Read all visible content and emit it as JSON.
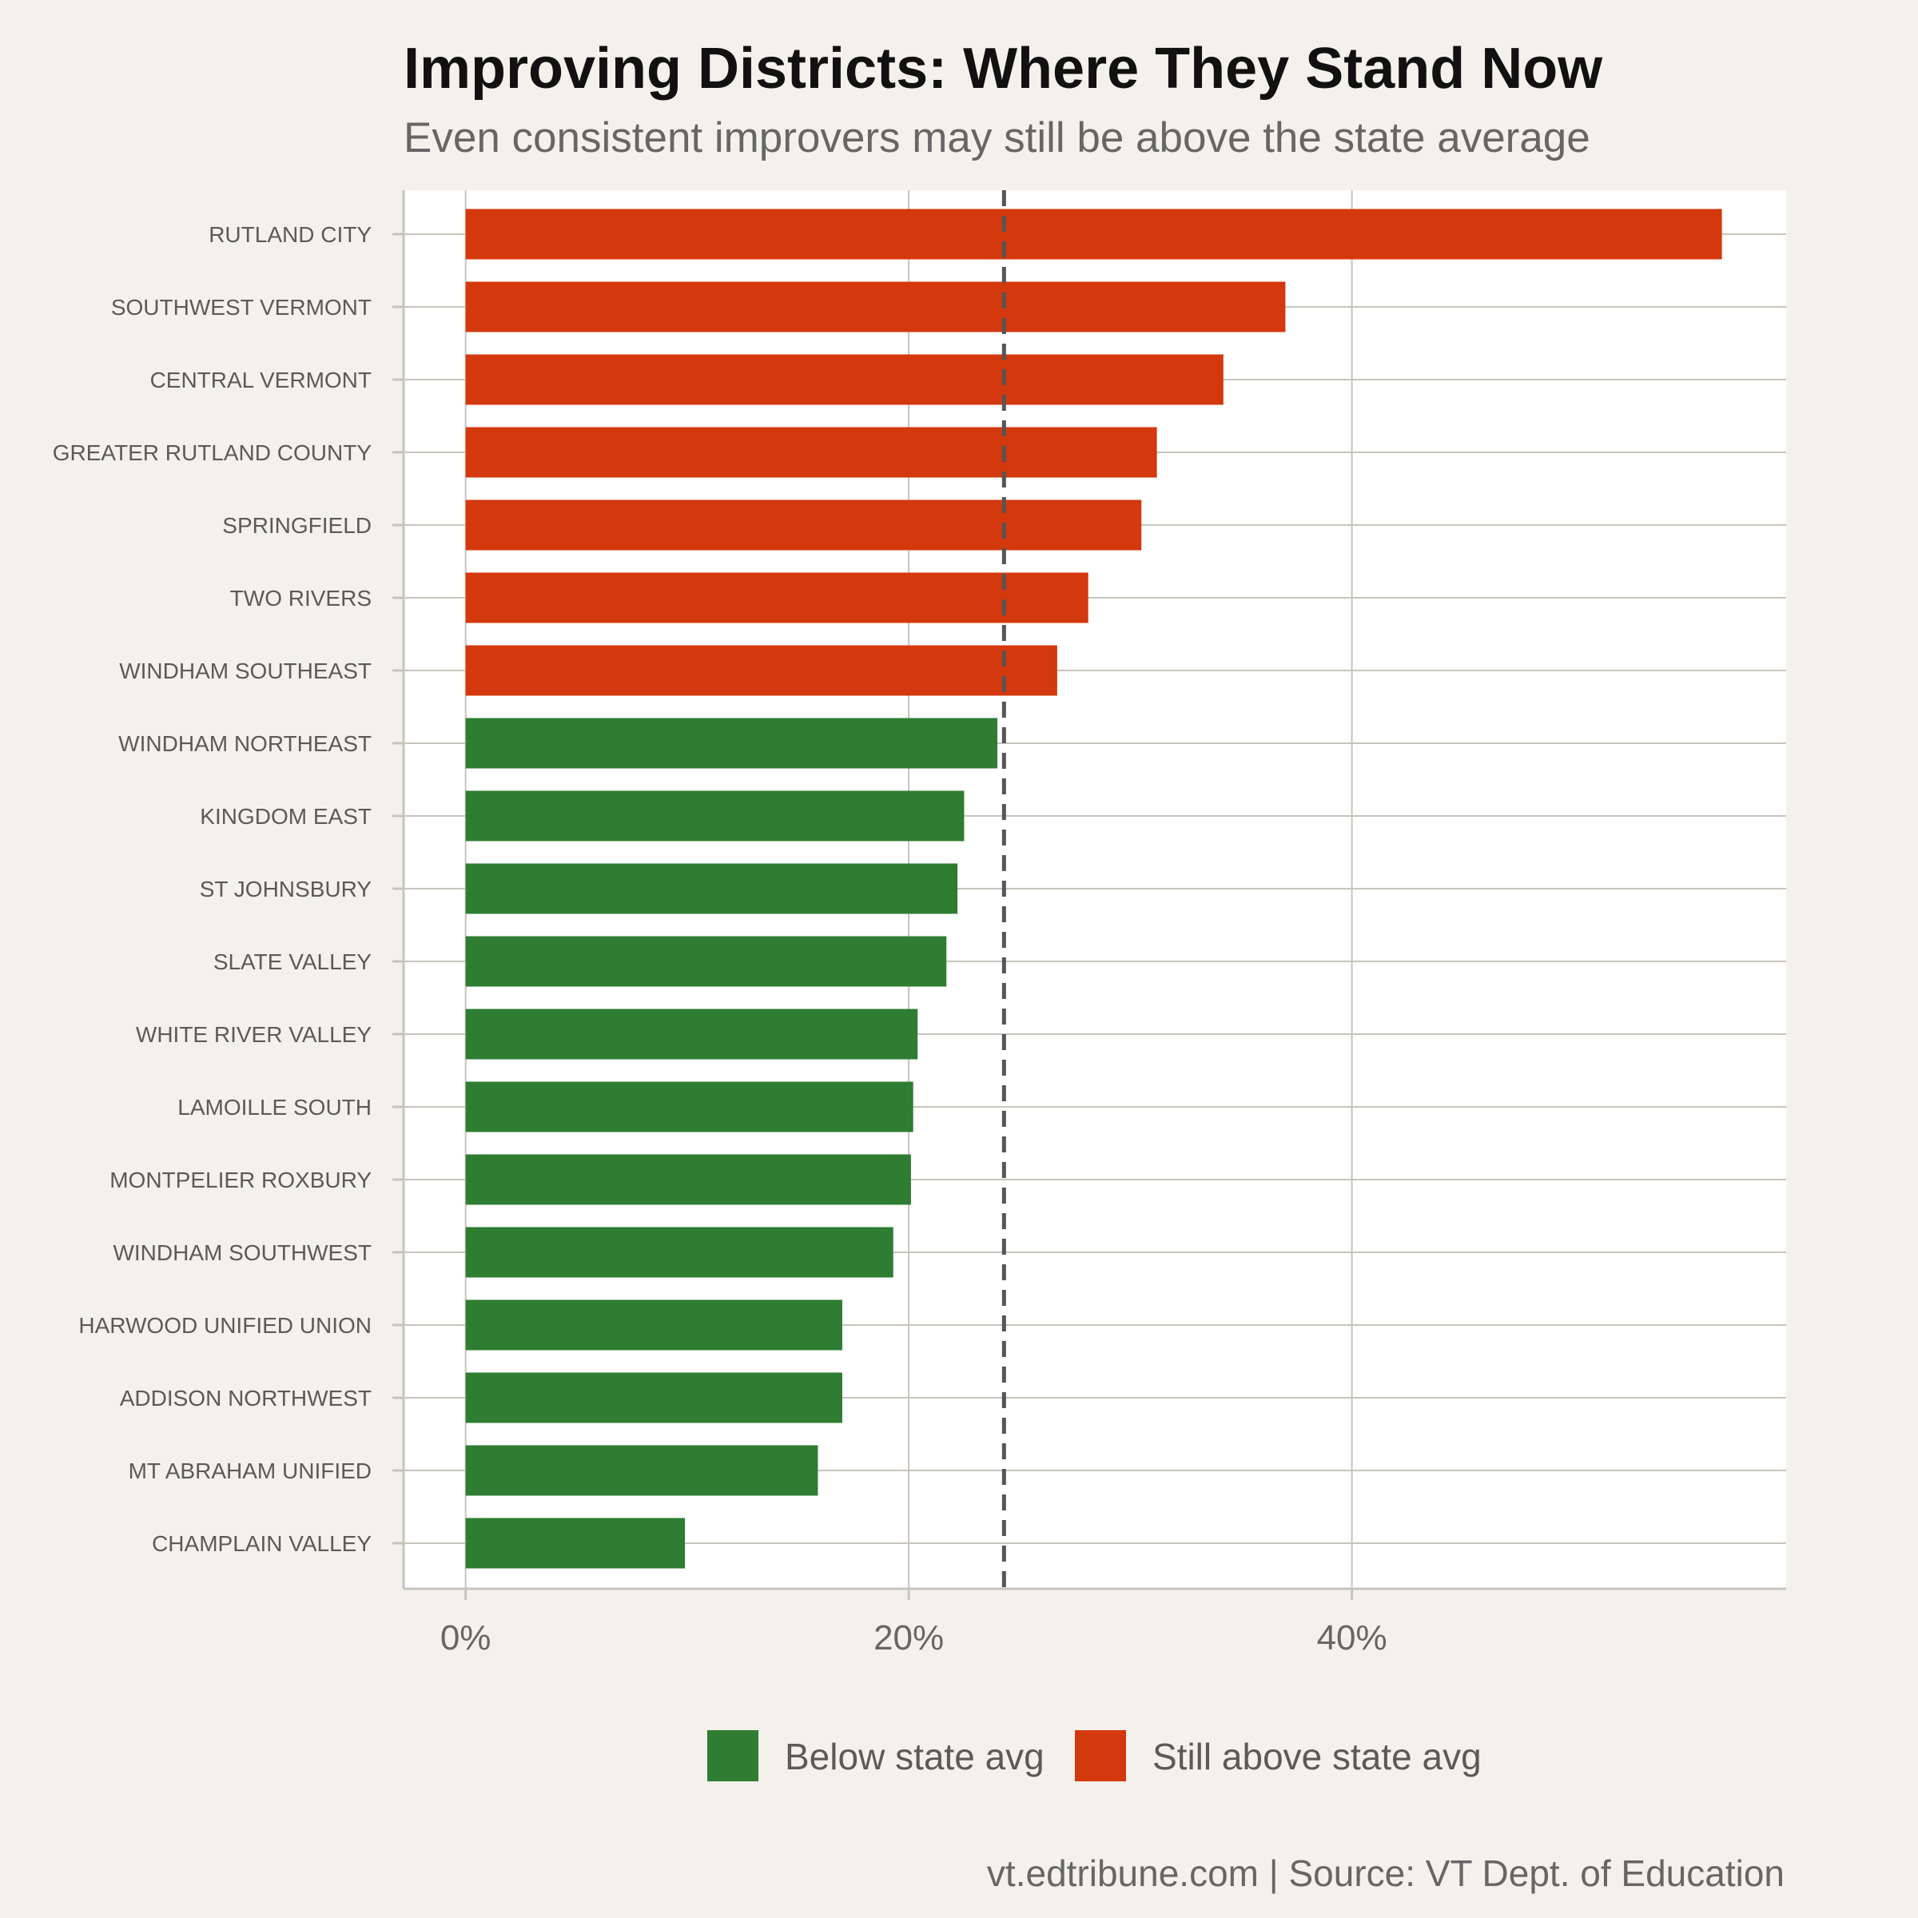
{
  "chart_data": {
    "type": "bar",
    "orientation": "horizontal",
    "title": "Improving Districts: Where They Stand Now",
    "subtitle": "Even consistent improvers may still be above the state average",
    "caption": "vt.edtribune.com | Source: VT Dept. of Education",
    "categories": [
      "RUTLAND CITY",
      "SOUTHWEST VERMONT",
      "CENTRAL VERMONT",
      "GREATER RUTLAND COUNTY",
      "SPRINGFIELD",
      "TWO RIVERS",
      "WINDHAM SOUTHEAST",
      "WINDHAM NORTHEAST",
      "KINGDOM EAST",
      "ST JOHNSBURY",
      "SLATE VALLEY",
      "WHITE RIVER VALLEY",
      "LAMOILLE SOUTH",
      "MONTPELIER ROXBURY",
      "WINDHAM SOUTHWEST",
      "HARWOOD UNIFIED UNION",
      "ADDISON NORTHWEST",
      "MT ABRAHAM UNIFIED",
      "CHAMPLAIN VALLEY"
    ],
    "values": [
      56.7,
      37.0,
      34.2,
      31.2,
      30.5,
      28.1,
      26.7,
      24.0,
      22.5,
      22.2,
      21.7,
      20.4,
      20.2,
      20.1,
      19.3,
      17.0,
      17.0,
      15.9,
      9.9
    ],
    "groups": [
      "Still above state avg",
      "Still above state avg",
      "Still above state avg",
      "Still above state avg",
      "Still above state avg",
      "Still above state avg",
      "Still above state avg",
      "Below state avg",
      "Below state avg",
      "Below state avg",
      "Below state avg",
      "Below state avg",
      "Below state avg",
      "Below state avg",
      "Below state avg",
      "Below state avg",
      "Below state avg",
      "Below state avg",
      "Below state avg"
    ],
    "reference_line": {
      "value": 24.3,
      "style": "dashed"
    },
    "xlim": [
      -2.8,
      59.6
    ],
    "x_ticks": [
      0,
      20,
      40
    ],
    "x_tick_labels": [
      "0%",
      "20%",
      "40%"
    ],
    "xlabel": "",
    "ylabel": "",
    "grid": true,
    "legend": {
      "placement": "bottom",
      "entries": [
        {
          "label": "Below state avg",
          "color": "#2e7d32"
        },
        {
          "label": "Still above state avg",
          "color": "#d4380d"
        }
      ]
    },
    "colors": {
      "Below state avg": "#2e7d32",
      "Still above state avg": "#d4380d",
      "background": "#f4f1ec",
      "panel": "#ffffff",
      "grid": "#c8c4bc",
      "reference_line": "#555555"
    }
  }
}
